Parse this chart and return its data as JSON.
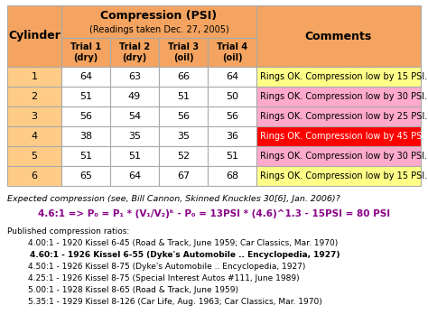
{
  "title": "Compression (PSI)",
  "subtitle": "(Readings taken Dec. 27, 2005)",
  "rows": [
    {
      "cyl": "1",
      "t1": "64",
      "t2": "63",
      "t3": "66",
      "t4": "64",
      "comment": "Rings OK. Compression low by 15 PSI.",
      "comment_color": "#ffff88",
      "row_color": "#ffcc88"
    },
    {
      "cyl": "2",
      "t1": "51",
      "t2": "49",
      "t3": "51",
      "t4": "50",
      "comment": "Rings OK. Compression low by 30 PSI.",
      "comment_color": "#ffaacc",
      "row_color": "#ffcc88"
    },
    {
      "cyl": "3",
      "t1": "56",
      "t2": "54",
      "t3": "56",
      "t4": "56",
      "comment": "Rings OK. Compression low by 25 PSI.",
      "comment_color": "#ffaacc",
      "row_color": "#ffcc88"
    },
    {
      "cyl": "4",
      "t1": "38",
      "t2": "35",
      "t3": "35",
      "t4": "36",
      "comment": "Rings OK. Compression low by 45 PSI!",
      "comment_color": "#ff0000",
      "row_color": "#ffcc88"
    },
    {
      "cyl": "5",
      "t1": "51",
      "t2": "51",
      "t3": "52",
      "t4": "51",
      "comment": "Rings OK. Compression low by 30 PSI.",
      "comment_color": "#ffaacc",
      "row_color": "#ffcc88"
    },
    {
      "cyl": "6",
      "t1": "65",
      "t2": "64",
      "t3": "67",
      "t4": "68",
      "comment": "Rings OK. Compression low by 15 PSI.",
      "comment_color": "#ffff88",
      "row_color": "#ffcc88"
    }
  ],
  "header_bg": "#f4a460",
  "trial_labels": [
    "Trial 1\n(dry)",
    "Trial 2\n(dry)",
    "Trial 3\n(oil)",
    "Trial 4\n(oil)"
  ],
  "note1": "Expected compression (see, Bill Cannon, Skinned Knuckles 30[6], Jan. 2006)?",
  "note2": "4.6:1 => P₀ = P₁ * (V₁/V₂)ᵏ - P₀ = 13PSI * (4.6)^1.3 - 15PSI = 80 PSI",
  "published": [
    "Published compression ratios:",
    "        4.00:1 - 1920 Kissel 6-45 (Road & Track, June 1959; Car Classics, Mar. 1970)",
    "        4.60:1 - 1926 Kissel 6-55 (Dyke's Automobile .. Encyclopedia, 1927)",
    "        4.50:1 - 1926 Kissel 8-75 (Dyke's Automobile .. Encyclopedia, 1927)",
    "        4.25:1 - 1926 Kissel 8-75 (Special Interest Autos #111, June 1989)",
    "        5.00:1 - 1928 Kissel 8-65 (Road & Track, June 1959)",
    "        5.35:1 - 1929 Kissel 8-126 (Car Life, Aug. 1963; Car Classics, Mar. 1970)"
  ],
  "bold_line": 2,
  "bg_color": "#ffffff",
  "border_color": "#aaaaaa",
  "text_color": "#000000"
}
